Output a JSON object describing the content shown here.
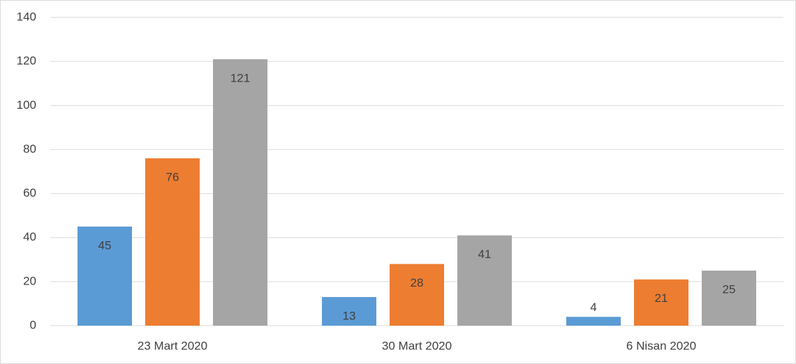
{
  "chart_data": {
    "type": "bar",
    "categories": [
      "23 Mart 2020",
      "30 Mart 2020",
      "6 Nisan 2020"
    ],
    "series": [
      {
        "color": "#5b9bd5",
        "values": [
          45,
          13,
          4
        ]
      },
      {
        "color": "#ed7d31",
        "values": [
          76,
          28,
          21
        ]
      },
      {
        "color": "#a5a5a5",
        "values": [
          121,
          41,
          25
        ]
      }
    ],
    "ylim": [
      0,
      140
    ],
    "yticks": [
      0,
      20,
      40,
      60,
      80,
      100,
      120,
      140
    ],
    "grid": true
  }
}
